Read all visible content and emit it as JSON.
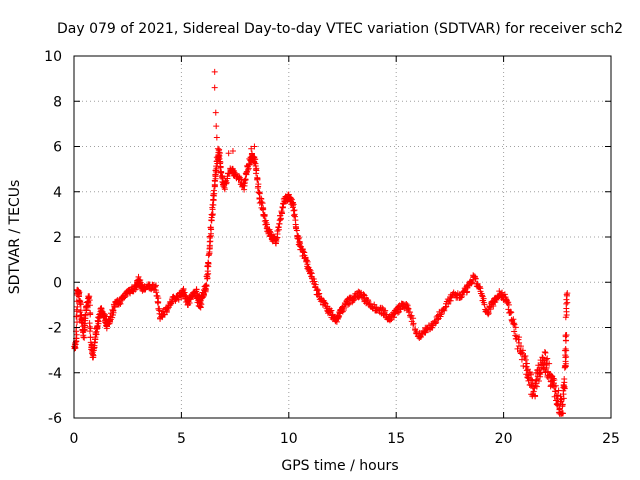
{
  "chart_data": {
    "type": "scatter",
    "title": "Day 079 of 2021, Sidereal Day-to-day VTEC variation (SDTVAR) for receiver sch2",
    "xlabel": "GPS time / hours",
    "ylabel": "SDTVAR / TECUs",
    "xlim": [
      0,
      25
    ],
    "ylim": [
      -6,
      10
    ],
    "xticks": [
      "0",
      "5",
      "10",
      "15",
      "20",
      "25"
    ],
    "yticks": [
      "-6",
      "-4",
      "-2",
      "0",
      "2",
      "4",
      "6",
      "8",
      "10"
    ],
    "grid": true,
    "marker": "+",
    "color": "#ff0000",
    "series": [
      {
        "name": "SDTVAR",
        "trace": [
          [
            0.0,
            -3.0
          ],
          [
            0.1,
            -2.6
          ],
          [
            0.15,
            -0.3
          ],
          [
            0.25,
            -0.6
          ],
          [
            0.35,
            -1.6
          ],
          [
            0.45,
            -2.4
          ],
          [
            0.55,
            -1.2
          ],
          [
            0.7,
            -0.6
          ],
          [
            0.8,
            -2.8
          ],
          [
            0.9,
            -3.2
          ],
          [
            1.0,
            -2.4
          ],
          [
            1.1,
            -1.8
          ],
          [
            1.25,
            -1.2
          ],
          [
            1.4,
            -1.5
          ],
          [
            1.55,
            -1.9
          ],
          [
            1.7,
            -1.6
          ],
          [
            1.9,
            -1.0
          ],
          [
            2.2,
            -0.8
          ],
          [
            2.5,
            -0.4
          ],
          [
            2.8,
            -0.3
          ],
          [
            3.0,
            0.1
          ],
          [
            3.2,
            -0.3
          ],
          [
            3.5,
            -0.2
          ],
          [
            3.8,
            -0.2
          ],
          [
            4.0,
            -1.5
          ],
          [
            4.3,
            -1.2
          ],
          [
            4.6,
            -0.8
          ],
          [
            4.9,
            -0.6
          ],
          [
            5.1,
            -0.4
          ],
          [
            5.3,
            -0.9
          ],
          [
            5.5,
            -0.6
          ],
          [
            5.7,
            -0.4
          ],
          [
            5.85,
            -1.1
          ],
          [
            6.0,
            -0.5
          ],
          [
            6.15,
            -0.2
          ],
          [
            6.25,
            0.8
          ],
          [
            6.35,
            2.0
          ],
          [
            6.45,
            3.2
          ],
          [
            6.55,
            4.3
          ],
          [
            6.65,
            5.3
          ],
          [
            6.75,
            5.8
          ],
          [
            6.85,
            4.8
          ],
          [
            7.0,
            4.2
          ],
          [
            7.3,
            5.0
          ],
          [
            7.6,
            4.7
          ],
          [
            7.9,
            4.2
          ],
          [
            8.1,
            5.1
          ],
          [
            8.3,
            5.6
          ],
          [
            8.45,
            5.3
          ],
          [
            8.6,
            3.9
          ],
          [
            8.8,
            3.2
          ],
          [
            9.0,
            2.4
          ],
          [
            9.2,
            2.0
          ],
          [
            9.4,
            1.8
          ],
          [
            9.6,
            2.8
          ],
          [
            9.8,
            3.6
          ],
          [
            10.0,
            3.8
          ],
          [
            10.2,
            3.4
          ],
          [
            10.4,
            2.0
          ],
          [
            10.6,
            1.4
          ],
          [
            10.8,
            1.0
          ],
          [
            11.0,
            0.4
          ],
          [
            11.3,
            -0.4
          ],
          [
            11.6,
            -0.9
          ],
          [
            11.9,
            -1.3
          ],
          [
            12.2,
            -1.7
          ],
          [
            12.4,
            -1.3
          ],
          [
            12.7,
            -0.9
          ],
          [
            13.0,
            -0.7
          ],
          [
            13.3,
            -0.5
          ],
          [
            13.6,
            -0.8
          ],
          [
            14.0,
            -1.1
          ],
          [
            14.4,
            -1.3
          ],
          [
            14.7,
            -1.6
          ],
          [
            15.0,
            -1.3
          ],
          [
            15.3,
            -1.0
          ],
          [
            15.6,
            -1.2
          ],
          [
            16.0,
            -2.4
          ],
          [
            16.4,
            -2.1
          ],
          [
            16.8,
            -1.8
          ],
          [
            17.2,
            -1.2
          ],
          [
            17.6,
            -0.6
          ],
          [
            18.0,
            -0.6
          ],
          [
            18.3,
            -0.3
          ],
          [
            18.6,
            0.2
          ],
          [
            18.9,
            -0.3
          ],
          [
            19.2,
            -1.4
          ],
          [
            19.5,
            -0.9
          ],
          [
            19.8,
            -0.5
          ],
          [
            20.1,
            -0.7
          ],
          [
            20.4,
            -1.6
          ],
          [
            20.7,
            -2.7
          ],
          [
            21.0,
            -3.5
          ],
          [
            21.2,
            -4.3
          ],
          [
            21.4,
            -4.8
          ],
          [
            21.6,
            -4.1
          ],
          [
            21.8,
            -3.4
          ],
          [
            22.0,
            -3.6
          ],
          [
            22.2,
            -4.2
          ],
          [
            22.4,
            -4.8
          ],
          [
            22.6,
            -5.4
          ],
          [
            22.75,
            -5.6
          ],
          [
            22.85,
            -4.2
          ],
          [
            22.9,
            -2.6
          ],
          [
            22.95,
            -0.6
          ]
        ],
        "spikes": [
          [
            6.55,
            9.3
          ],
          [
            6.55,
            8.6
          ],
          [
            6.6,
            7.5
          ],
          [
            6.62,
            6.9
          ],
          [
            6.65,
            6.4
          ],
          [
            6.7,
            5.9
          ],
          [
            8.4,
            6.0
          ],
          [
            8.25,
            5.9
          ],
          [
            7.4,
            5.8
          ],
          [
            7.2,
            5.7
          ]
        ]
      }
    ]
  }
}
